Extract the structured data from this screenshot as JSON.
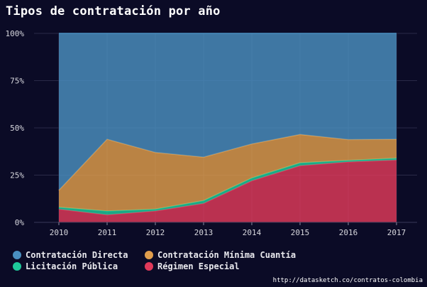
{
  "title": "Tipos de contratación por año",
  "source": "http://datasketch.co/contratos-colombia",
  "chart_data": {
    "type": "area",
    "stacked": true,
    "normalized": true,
    "x": [
      "2010",
      "2011",
      "2012",
      "2013",
      "2014",
      "2015",
      "2016",
      "2017"
    ],
    "ylim": [
      0,
      100
    ],
    "y_ticks": [
      "0%",
      "25%",
      "50%",
      "75%",
      "100%"
    ],
    "grid": true,
    "legend_position": "bottom",
    "series": [
      {
        "name": "Régimen Especial",
        "color": "#e0395a",
        "values": [
          7,
          4,
          6,
          10,
          22,
          30,
          32,
          33
        ]
      },
      {
        "name": "Licitación Pública",
        "color": "#1ec99a",
        "values": [
          1,
          2,
          1,
          1.5,
          1.5,
          1.5,
          0.8,
          1
        ]
      },
      {
        "name": "Contratación Mínima Cuantía",
        "color": "#e09d4c",
        "values": [
          9,
          38,
          30,
          23,
          18,
          15,
          11,
          10
        ]
      },
      {
        "name": "Contratación Directa",
        "color": "#4a8fc0",
        "values": [
          83,
          56,
          63,
          65.5,
          58.5,
          53.5,
          56.2,
          56
        ]
      }
    ]
  },
  "legend": [
    {
      "label": "Contratación Directa",
      "color": "#4a8fc0"
    },
    {
      "label": "Contratación Mínima Cuantía",
      "color": "#e09d4c"
    },
    {
      "label": "Licitación Pública",
      "color": "#1ec99a"
    },
    {
      "label": "Régimen Especial",
      "color": "#e0395a"
    }
  ]
}
